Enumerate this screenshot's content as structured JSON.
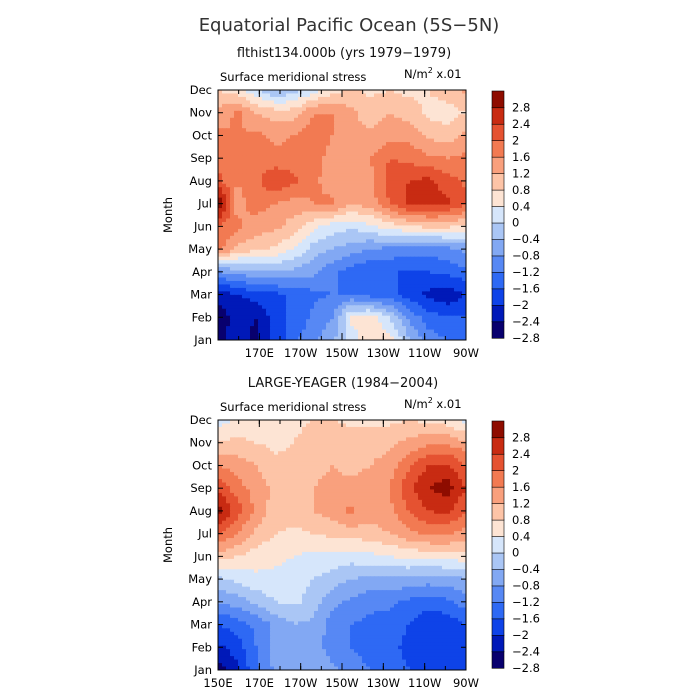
{
  "figure": {
    "title": "Equatorial Pacific Ocean (5S−5N)",
    "colorbar_labels": [
      "2.8",
      "2.4",
      "2",
      "1.6",
      "1.2",
      "0.8",
      "0.4",
      "0",
      "−0.4",
      "−0.8",
      "−1.2",
      "−1.6",
      "−2",
      "−2.4",
      "−2.8"
    ],
    "colormap": [
      "#08006e",
      "#0019b8",
      "#0e43e8",
      "#2e69f4",
      "#5788f4",
      "#82a8f3",
      "#aac6f5",
      "#d6e6fb",
      "#fde4d4",
      "#fdc4a7",
      "#f9a07d",
      "#f27a52",
      "#e55231",
      "#c82b12",
      "#8e0c00"
    ]
  },
  "chart_data": [
    {
      "type": "heatmap",
      "panel_title": "flthist134.000b (yrs 1979−1979)",
      "subtitle": "Surface meridional stress",
      "units": "N/m² x.01",
      "units_base": "N/m",
      "units_exp": "2",
      "units_suffix": " x.01",
      "ylabel": "Month",
      "months": [
        "Jan",
        "Feb",
        "Mar",
        "Apr",
        "May",
        "Jun",
        "Jul",
        "Aug",
        "Sep",
        "Oct",
        "Nov",
        "Dec"
      ],
      "lon_ticks": [
        "170E",
        "170W",
        "150W",
        "130W",
        "110W",
        "90W"
      ],
      "lon_range": [
        150,
        270
      ],
      "levels": [
        -2.8,
        -2.4,
        -2.0,
        -1.6,
        -1.2,
        -0.8,
        -0.4,
        0,
        0.4,
        0.8,
        1.2,
        1.6,
        2.0,
        2.4,
        2.8
      ],
      "values": [
        [
          -2.9,
          -2.6,
          -2.9,
          -2.3,
          -1.7,
          -1.3,
          -0.9,
          -0.2,
          0.3,
          0.2,
          -0.7,
          -1.4,
          -1.6,
          -1.6
        ],
        [
          -3.0,
          -2.7,
          -2.8,
          -2.2,
          -1.9,
          -1.5,
          -1.2,
          0.1,
          0.2,
          -0.4,
          -1.3,
          -1.8,
          -2.0,
          -2.0
        ],
        [
          -2.7,
          -2.4,
          -2.2,
          -2.1,
          -1.9,
          -1.7,
          -1.6,
          -1.6,
          -1.8,
          -1.9,
          -2.2,
          -2.5,
          -2.7,
          -2.4
        ],
        [
          -1.2,
          -1.0,
          -0.9,
          -0.8,
          -0.9,
          -1.1,
          -1.5,
          -1.8,
          -2.0,
          -2.0,
          -2.0,
          -2.0,
          -1.9,
          -1.7
        ],
        [
          1.4,
          0.7,
          0.5,
          0.3,
          0.0,
          -0.6,
          -0.8,
          -1.0,
          -1.2,
          -1.3,
          -1.4,
          -1.4,
          -1.3,
          -1.1
        ],
        [
          1.6,
          1.3,
          1.0,
          0.9,
          0.6,
          0.1,
          -0.2,
          -0.3,
          -0.1,
          0.2,
          0.4,
          0.5,
          0.5,
          0.3
        ],
        [
          2.9,
          1.0,
          1.4,
          1.2,
          1.0,
          1.2,
          1.3,
          0.8,
          1.0,
          1.6,
          2.1,
          2.2,
          2.1,
          1.7
        ],
        [
          1.7,
          1.2,
          1.5,
          2.0,
          1.7,
          1.3,
          1.0,
          0.9,
          1.1,
          1.8,
          2.0,
          2.1,
          1.8,
          1.5
        ],
        [
          1.5,
          1.3,
          1.4,
          1.3,
          1.4,
          1.3,
          1.1,
          0.9,
          1.2,
          1.6,
          1.5,
          1.3,
          1.2,
          1.3
        ],
        [
          1.3,
          1.2,
          1.3,
          1.1,
          1.2,
          1.4,
          1.2,
          0.8,
          0.9,
          1.0,
          1.1,
          0.7,
          0.6,
          0.9
        ],
        [
          0.9,
          1.3,
          0.8,
          0.6,
          0.6,
          1.2,
          1.2,
          0.9,
          0.6,
          0.8,
          0.6,
          0.3,
          0.2,
          0.4
        ],
        [
          0.4,
          0.2,
          -0.3,
          -0.8,
          -0.6,
          -0.2,
          0.2,
          0.5,
          0.3,
          0.4,
          0.3,
          0.4,
          0.6,
          0.9
        ]
      ]
    },
    {
      "type": "heatmap",
      "panel_title": "LARGE-YEAGER (1984−2004)",
      "subtitle": "Surface meridional stress",
      "units": "N/m² x.01",
      "units_base": "N/m",
      "units_exp": "2",
      "units_suffix": " x.01",
      "ylabel": "Month",
      "months": [
        "Jan",
        "Feb",
        "Mar",
        "Apr",
        "May",
        "Jun",
        "Jul",
        "Aug",
        "Sep",
        "Oct",
        "Nov",
        "Dec"
      ],
      "lon_ticks": [
        "150E",
        "170E",
        "170W",
        "150W",
        "130W",
        "110W",
        "90W"
      ],
      "lon_range": [
        150,
        270
      ],
      "levels": [
        -2.8,
        -2.4,
        -2.0,
        -1.6,
        -1.2,
        -0.8,
        -0.4,
        0,
        0.4,
        0.8,
        1.2,
        1.6,
        2.0,
        2.4,
        2.8
      ],
      "values": [
        [
          -3.0,
          -2.5,
          -1.7,
          -1.1,
          -0.8,
          -0.8,
          -1.1,
          -1.4,
          -1.6,
          -1.8,
          -2.0,
          -2.2,
          -2.3,
          -2.1
        ],
        [
          -2.5,
          -2.2,
          -1.6,
          -1.1,
          -0.9,
          -1.0,
          -1.4,
          -1.6,
          -1.8,
          -1.9,
          -2.1,
          -2.3,
          -2.4,
          -2.2
        ],
        [
          -2.0,
          -1.8,
          -1.5,
          -1.1,
          -0.8,
          -0.9,
          -1.4,
          -1.6,
          -1.7,
          -1.8,
          -2.0,
          -2.3,
          -2.3,
          -2.0
        ],
        [
          -1.2,
          -1.0,
          -0.7,
          -0.4,
          -0.3,
          -0.6,
          -1.1,
          -1.3,
          -1.5,
          -1.5,
          -1.7,
          -1.8,
          -1.7,
          -1.4
        ],
        [
          -0.5,
          -0.3,
          -0.1,
          -0.1,
          -0.2,
          -0.4,
          -0.6,
          -0.8,
          -0.9,
          -0.9,
          -0.9,
          -1.0,
          -1.0,
          -0.8
        ],
        [
          0.6,
          0.4,
          0.2,
          0.1,
          0.0,
          -0.1,
          -0.1,
          -0.2,
          -0.1,
          0.0,
          0.1,
          0.1,
          0.2,
          0.2
        ],
        [
          1.7,
          1.2,
          0.7,
          0.4,
          0.3,
          0.4,
          0.5,
          0.6,
          0.6,
          0.8,
          1.1,
          1.3,
          1.3,
          1.0
        ],
        [
          2.6,
          1.8,
          1.1,
          0.6,
          0.6,
          0.8,
          1.0,
          1.3,
          1.0,
          1.1,
          1.6,
          2.0,
          2.1,
          1.6
        ],
        [
          1.9,
          1.4,
          1.0,
          0.7,
          0.6,
          0.8,
          0.9,
          0.9,
          1.0,
          1.2,
          1.9,
          2.4,
          2.6,
          2.0
        ],
        [
          1.2,
          1.0,
          0.8,
          0.5,
          0.5,
          0.7,
          0.8,
          0.7,
          0.8,
          1.0,
          1.5,
          2.0,
          2.1,
          1.6
        ],
        [
          0.4,
          0.5,
          0.4,
          0.3,
          0.4,
          0.6,
          0.7,
          0.6,
          0.6,
          0.7,
          0.9,
          1.1,
          1.1,
          0.9
        ],
        [
          -0.2,
          0.1,
          0.2,
          0.2,
          0.3,
          0.4,
          0.4,
          0.3,
          0.3,
          0.3,
          0.4,
          0.3,
          0.2,
          -0.2
        ]
      ]
    }
  ]
}
